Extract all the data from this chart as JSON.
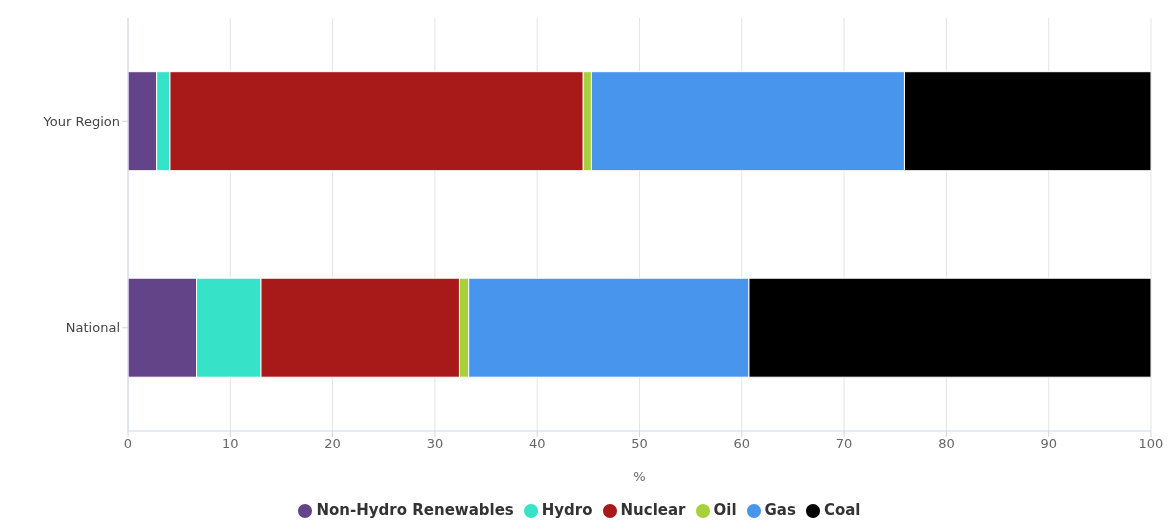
{
  "chart_data": {
    "type": "bar",
    "orientation": "horizontal",
    "stacked": true,
    "xlabel": "%",
    "categories": [
      "Your Region",
      "National"
    ],
    "series": [
      {
        "name": "Non-Hydro Renewables",
        "color": "#634489",
        "values": [
          2.8,
          6.7
        ]
      },
      {
        "name": "Hydro",
        "color": "#36e2c8",
        "values": [
          1.3,
          6.3
        ]
      },
      {
        "name": "Nuclear",
        "color": "#a8191a",
        "values": [
          40.4,
          19.4
        ]
      },
      {
        "name": "Oil",
        "color": "#a6d13a",
        "values": [
          0.8,
          0.9
        ]
      },
      {
        "name": "Gas",
        "color": "#4895ed",
        "values": [
          30.6,
          27.4
        ]
      },
      {
        "name": "Coal",
        "color": "#000000",
        "values": [
          24.1,
          39.3
        ]
      }
    ],
    "xlim": [
      0,
      100
    ],
    "xticks": [
      0,
      10,
      20,
      30,
      40,
      50,
      60,
      70,
      80,
      90,
      100
    ],
    "grid": "x",
    "legend": "bottom"
  }
}
